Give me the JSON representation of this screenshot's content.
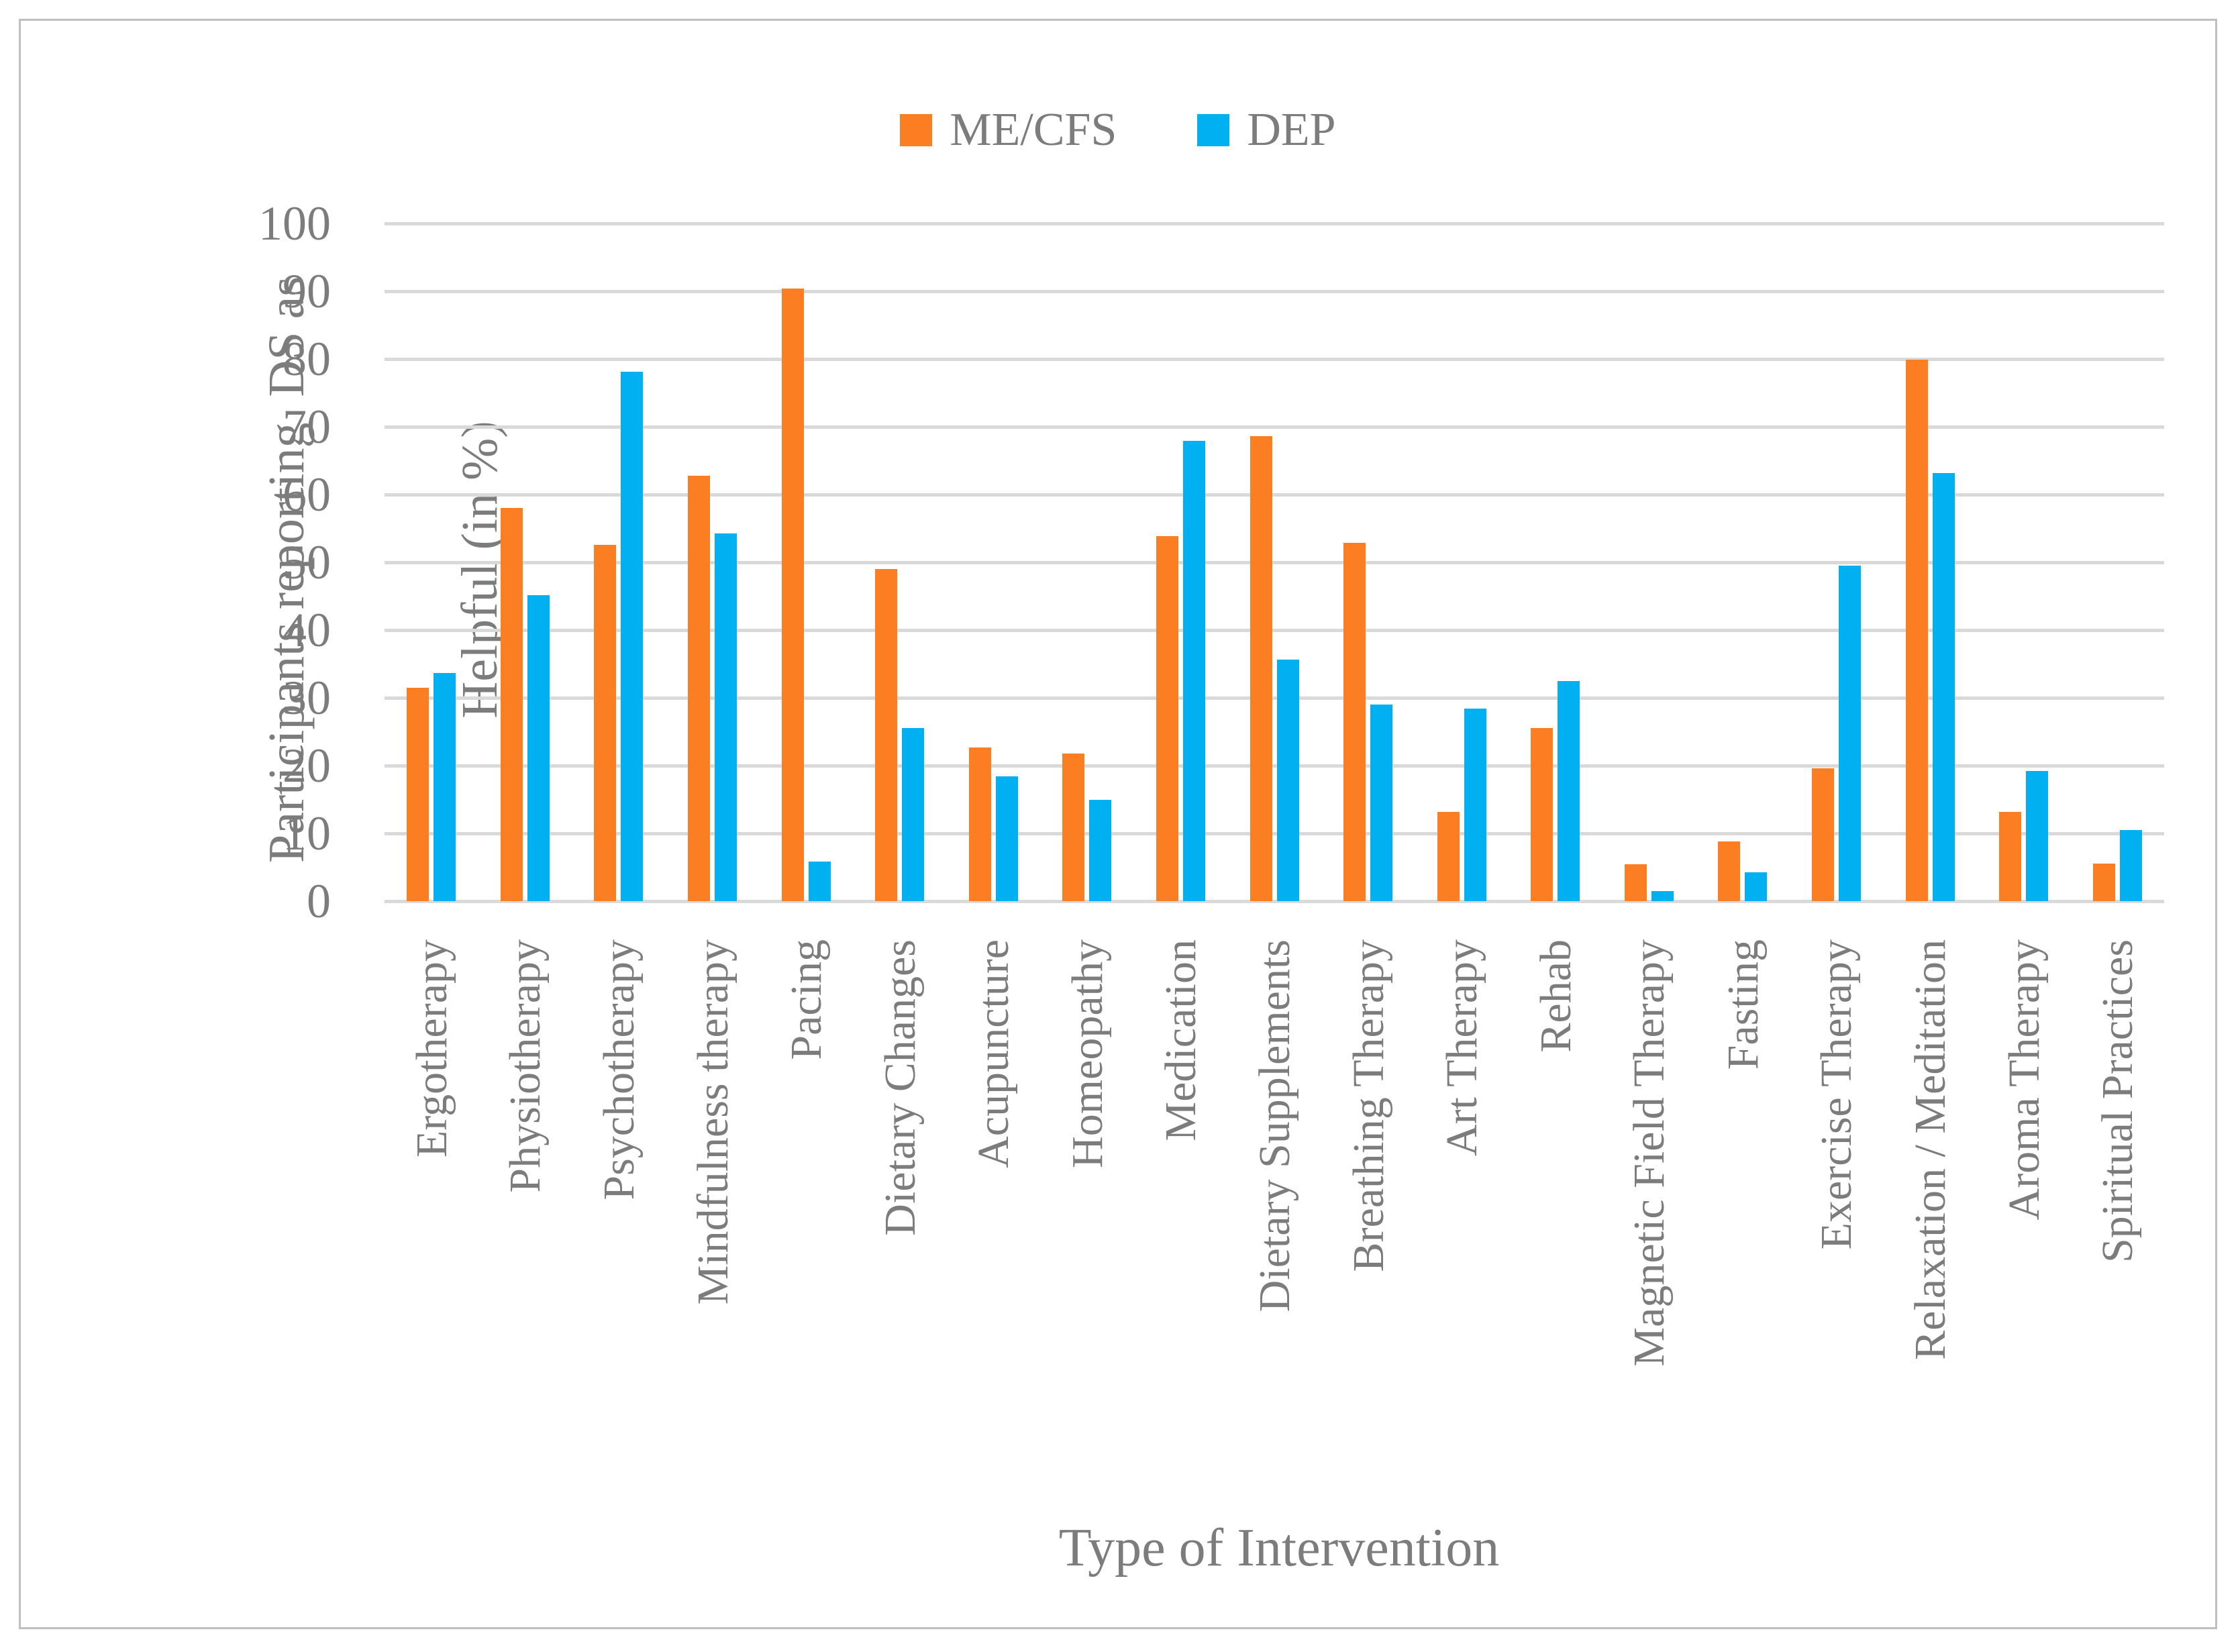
{
  "legend": {
    "items": [
      {
        "label": "ME/CFS",
        "color": "#FC7E23"
      },
      {
        "label": "DEP",
        "color": "#00B0F0"
      }
    ]
  },
  "chart_data": {
    "type": "bar",
    "title": "",
    "xlabel": "Type of Intervention",
    "ylabel": "Participants reporting  DS as Helpful (in %)",
    "ylabel_lines": [
      "Participants reporting  DS as",
      "Helpful (in %)"
    ],
    "categories": [
      "Ergotherapy",
      "Physiotherapy",
      "Psychotherapy",
      "Mindfulness therapy",
      "Pacing",
      "Dietary Changes",
      "Acupuncture",
      "Homeopathy",
      "Medication",
      "Dietary Supplements",
      "Breathing Therapy",
      "Art Therapy",
      "Rehab",
      "Magnetic Field Therapy",
      "Fasting",
      "Exercise Therapy",
      "Relaxation / Meditation",
      "Aroma Therapy",
      "Spiritual Practices"
    ],
    "series": [
      {
        "name": "ME/CFS",
        "color": "#FC7E23",
        "values": [
          31.5,
          58.0,
          52.6,
          62.8,
          90.4,
          49.0,
          22.7,
          21.8,
          53.9,
          68.6,
          52.9,
          13.2,
          25.5,
          5.4,
          8.8,
          19.6,
          79.9,
          13.2,
          5.5
        ]
      },
      {
        "name": "DEP",
        "color": "#00B0F0",
        "values": [
          33.7,
          45.1,
          78.1,
          54.3,
          5.8,
          25.5,
          18.4,
          15.0,
          67.9,
          35.6,
          29.0,
          28.4,
          32.5,
          1.5,
          4.3,
          49.5,
          63.2,
          19.2,
          10.5
        ]
      }
    ],
    "ylim": [
      0,
      100
    ],
    "yticks": [
      0,
      10,
      20,
      30,
      40,
      50,
      60,
      70,
      80,
      90,
      100
    ],
    "grid": "horizontal",
    "legend_position": "top",
    "gridline_color": "#D9D9D9",
    "text_color": "#7C7C7C"
  }
}
